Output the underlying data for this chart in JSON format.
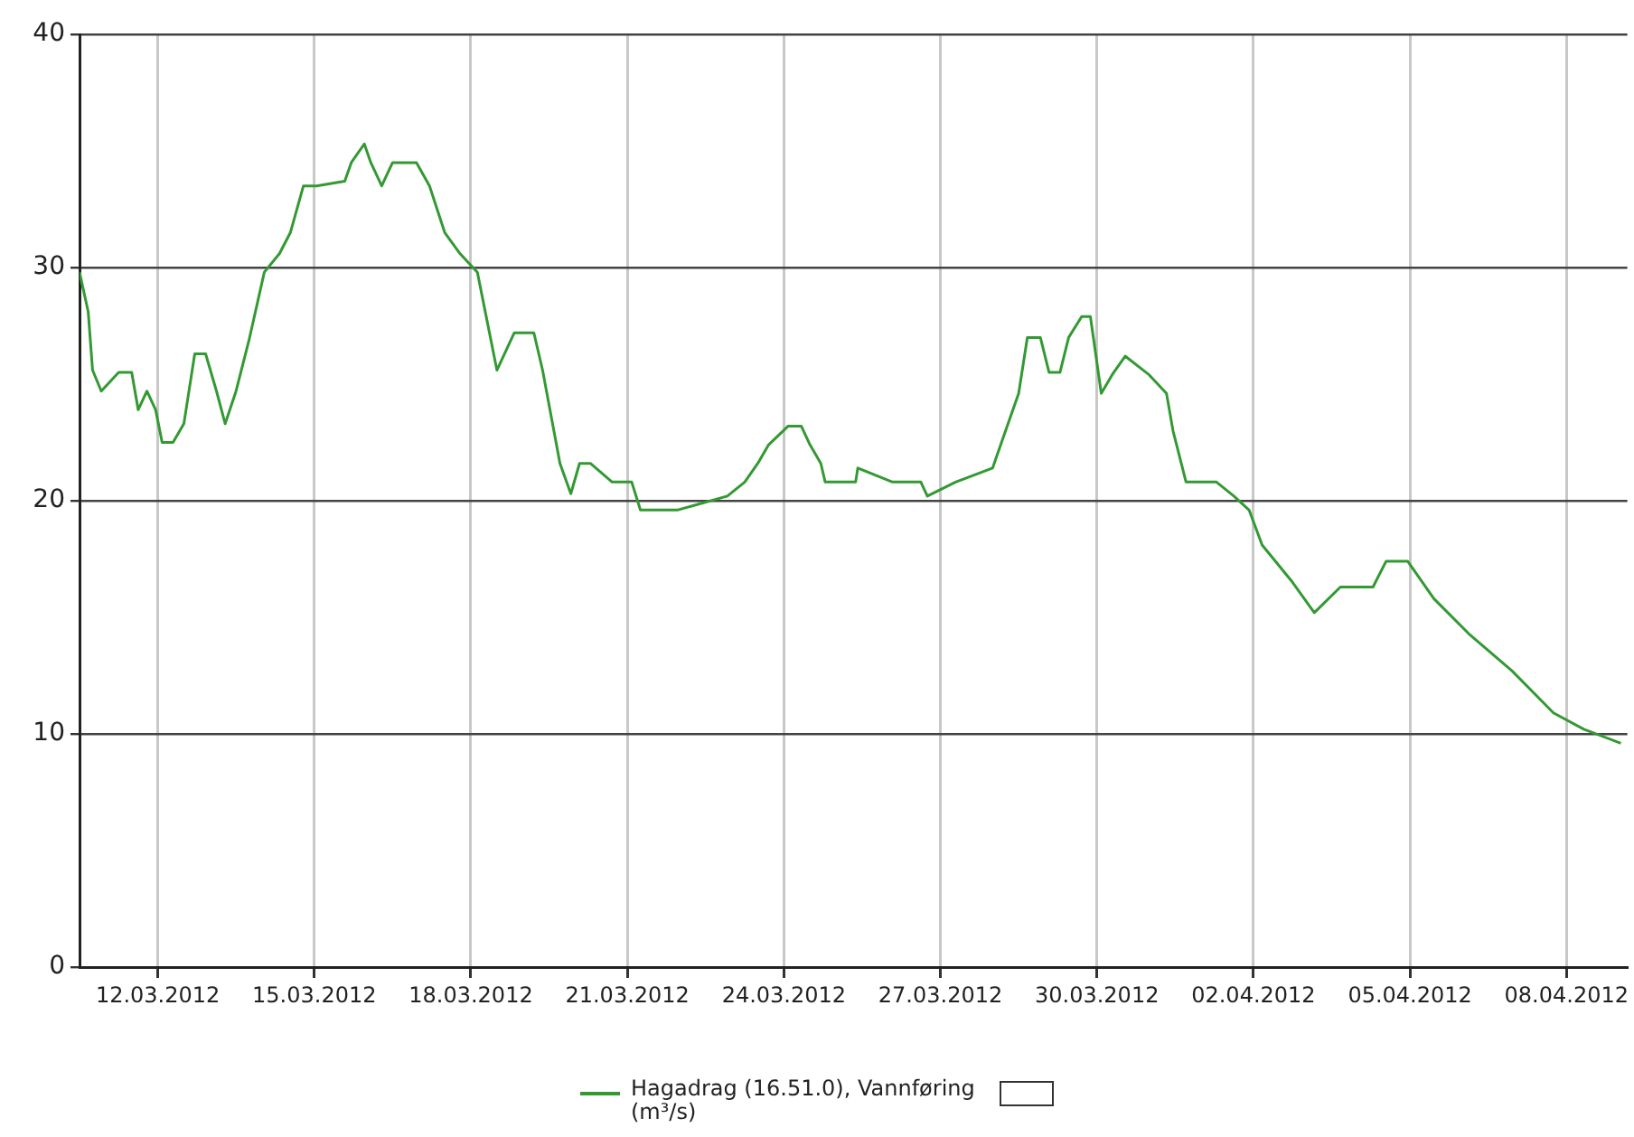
{
  "chart_data": {
    "type": "line",
    "legend": "bottom",
    "grid": true,
    "marker": "none",
    "line_style": "solid",
    "xlim": [
      "2012-03-10T12:00",
      "2012-04-09T04:00"
    ],
    "xticks": [
      {
        "value": "2012-03-12",
        "label": "12.03.2012"
      },
      {
        "value": "2012-03-15",
        "label": "15.03.2012"
      },
      {
        "value": "2012-03-18",
        "label": "18.03.2012"
      },
      {
        "value": "2012-03-21",
        "label": "21.03.2012"
      },
      {
        "value": "2012-03-24",
        "label": "24.03.2012"
      },
      {
        "value": "2012-03-27",
        "label": "27.03.2012"
      },
      {
        "value": "2012-03-30",
        "label": "30.03.2012"
      },
      {
        "value": "2012-04-02",
        "label": "02.04.2012"
      },
      {
        "value": "2012-04-05",
        "label": "05.04.2012"
      },
      {
        "value": "2012-04-08",
        "label": "08.04.2012"
      }
    ],
    "ylim": [
      0,
      40
    ],
    "yticks": [
      0,
      10,
      20,
      30,
      40
    ],
    "x": [
      "2012-03-10T12:00",
      "2012-03-10T16:00",
      "2012-03-10T18:00",
      "2012-03-10T22:00",
      "2012-03-11T06:00",
      "2012-03-11T12:00",
      "2012-03-11T15:00",
      "2012-03-11T19:00",
      "2012-03-11T23:00",
      "2012-03-12T02:00",
      "2012-03-12T07:00",
      "2012-03-12T12:00",
      "2012-03-12T17:00",
      "2012-03-12T22:00",
      "2012-03-13T03:00",
      "2012-03-13T07:00",
      "2012-03-13T12:00",
      "2012-03-13T18:00",
      "2012-03-14T01:00",
      "2012-03-14T08:00",
      "2012-03-14T13:00",
      "2012-03-14T19:00",
      "2012-03-15T01:00",
      "2012-03-15T14:00",
      "2012-03-15T17:00",
      "2012-03-15T23:00",
      "2012-03-16T02:00",
      "2012-03-16T07:00",
      "2012-03-16T12:00",
      "2012-03-16T23:00",
      "2012-03-17T05:00",
      "2012-03-17T12:00",
      "2012-03-17T19:00",
      "2012-03-18T03:00",
      "2012-03-18T12:00",
      "2012-03-18T20:00",
      "2012-03-19T05:00",
      "2012-03-19T09:00",
      "2012-03-19T17:00",
      "2012-03-19T22:00",
      "2012-03-20T02:00",
      "2012-03-20T07:00",
      "2012-03-20T17:00",
      "2012-03-21T02:00",
      "2012-03-21T06:00",
      "2012-03-21T23:00",
      "2012-03-22T22:00",
      "2012-03-23T06:00",
      "2012-03-23T12:00",
      "2012-03-23T17:00",
      "2012-03-24T02:00",
      "2012-03-24T08:00",
      "2012-03-24T12:00",
      "2012-03-24T17:00",
      "2012-03-24T19:00",
      "2012-03-25T09:00",
      "2012-03-25T10:00",
      "2012-03-26T02:00",
      "2012-03-26T15:00",
      "2012-03-26T18:00",
      "2012-03-27T07:00",
      "2012-03-28T00:00",
      "2012-03-28T06:00",
      "2012-03-28T12:00",
      "2012-03-28T16:00",
      "2012-03-28T22:00",
      "2012-03-29T02:00",
      "2012-03-29T07:00",
      "2012-03-29T11:00",
      "2012-03-29T17:00",
      "2012-03-29T21:00",
      "2012-03-30T02:00",
      "2012-03-30T07:00",
      "2012-03-30T13:00",
      "2012-03-31T00:00",
      "2012-03-31T08:00",
      "2012-03-31T11:00",
      "2012-03-31T17:00",
      "2012-04-01T07:00",
      "2012-04-01T15:00",
      "2012-04-01T22:00",
      "2012-04-02T04:00",
      "2012-04-02T18:00",
      "2012-04-03T04:00",
      "2012-04-03T16:00",
      "2012-04-04T07:00",
      "2012-04-04T13:00",
      "2012-04-04T23:00",
      "2012-04-05T11:00",
      "2012-04-06T03:00",
      "2012-04-06T23:00",
      "2012-04-07T18:00",
      "2012-04-08T08:00",
      "2012-04-09T01:00"
    ],
    "series": [
      {
        "name": "Hagadrag (16.51.0), Vannføring (m³/s)",
        "color": "#339933",
        "values": [
          29.8,
          28.1,
          25.6,
          24.7,
          25.5,
          25.5,
          23.9,
          24.7,
          23.9,
          22.5,
          22.5,
          23.3,
          26.3,
          26.3,
          24.7,
          23.3,
          24.7,
          26.9,
          29.8,
          30.6,
          31.5,
          33.5,
          33.5,
          33.7,
          34.5,
          35.3,
          34.5,
          33.5,
          34.5,
          34.5,
          33.5,
          31.5,
          30.6,
          29.8,
          25.6,
          27.2,
          27.2,
          25.6,
          21.6,
          20.3,
          21.6,
          21.6,
          20.8,
          20.8,
          19.6,
          19.6,
          20.2,
          20.8,
          21.6,
          22.4,
          23.2,
          23.2,
          22.4,
          21.6,
          20.8,
          20.8,
          21.4,
          20.8,
          20.8,
          20.2,
          20.8,
          21.4,
          23.0,
          24.6,
          27.0,
          27.0,
          25.5,
          25.5,
          27.0,
          27.9,
          27.9,
          24.6,
          25.4,
          26.2,
          25.4,
          24.6,
          23.0,
          20.8,
          20.8,
          20.2,
          19.6,
          18.1,
          16.5,
          15.2,
          16.3,
          16.3,
          17.4,
          17.4,
          15.8,
          14.3,
          12.7,
          10.9,
          10.2,
          9.6
        ]
      }
    ]
  }
}
